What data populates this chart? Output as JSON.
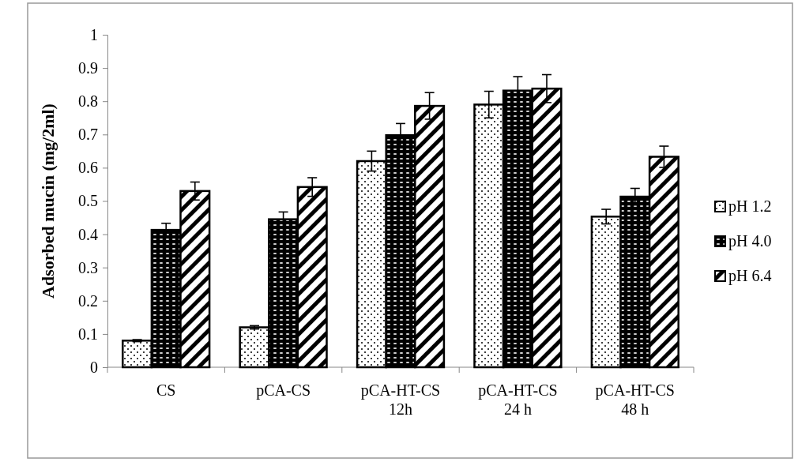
{
  "chart_data": {
    "type": "bar",
    "ylabel": "Adsorbed mucin (mg/2ml)",
    "categories": [
      "CS",
      "pCA-CS",
      "pCA-HT-CS\n12h",
      "pCA-HT-CS\n24 h",
      "pCA-HT-CS\n48 h"
    ],
    "series": [
      {
        "name": "pH 1.2",
        "color": "#000000",
        "values": [
          0.08,
          0.12,
          0.62,
          0.79,
          0.453
        ],
        "errors": [
          0.003,
          0.005,
          0.03,
          0.04,
          0.022
        ]
      },
      {
        "name": "pH 4.0",
        "color": "#000000",
        "values": [
          0.413,
          0.445,
          0.698,
          0.832,
          0.513
        ],
        "errors": [
          0.02,
          0.022,
          0.035,
          0.042,
          0.025
        ]
      },
      {
        "name": "pH 6.4",
        "color": "#000000",
        "values": [
          0.53,
          0.542,
          0.786,
          0.838,
          0.633
        ],
        "errors": [
          0.027,
          0.028,
          0.04,
          0.042,
          0.032
        ]
      }
    ],
    "ylim": [
      0,
      1
    ],
    "yticks": [
      0,
      0.1,
      0.2,
      0.3,
      0.4,
      0.5,
      0.6,
      0.7,
      0.8,
      0.9,
      1
    ],
    "grid": false,
    "legend": "right"
  }
}
